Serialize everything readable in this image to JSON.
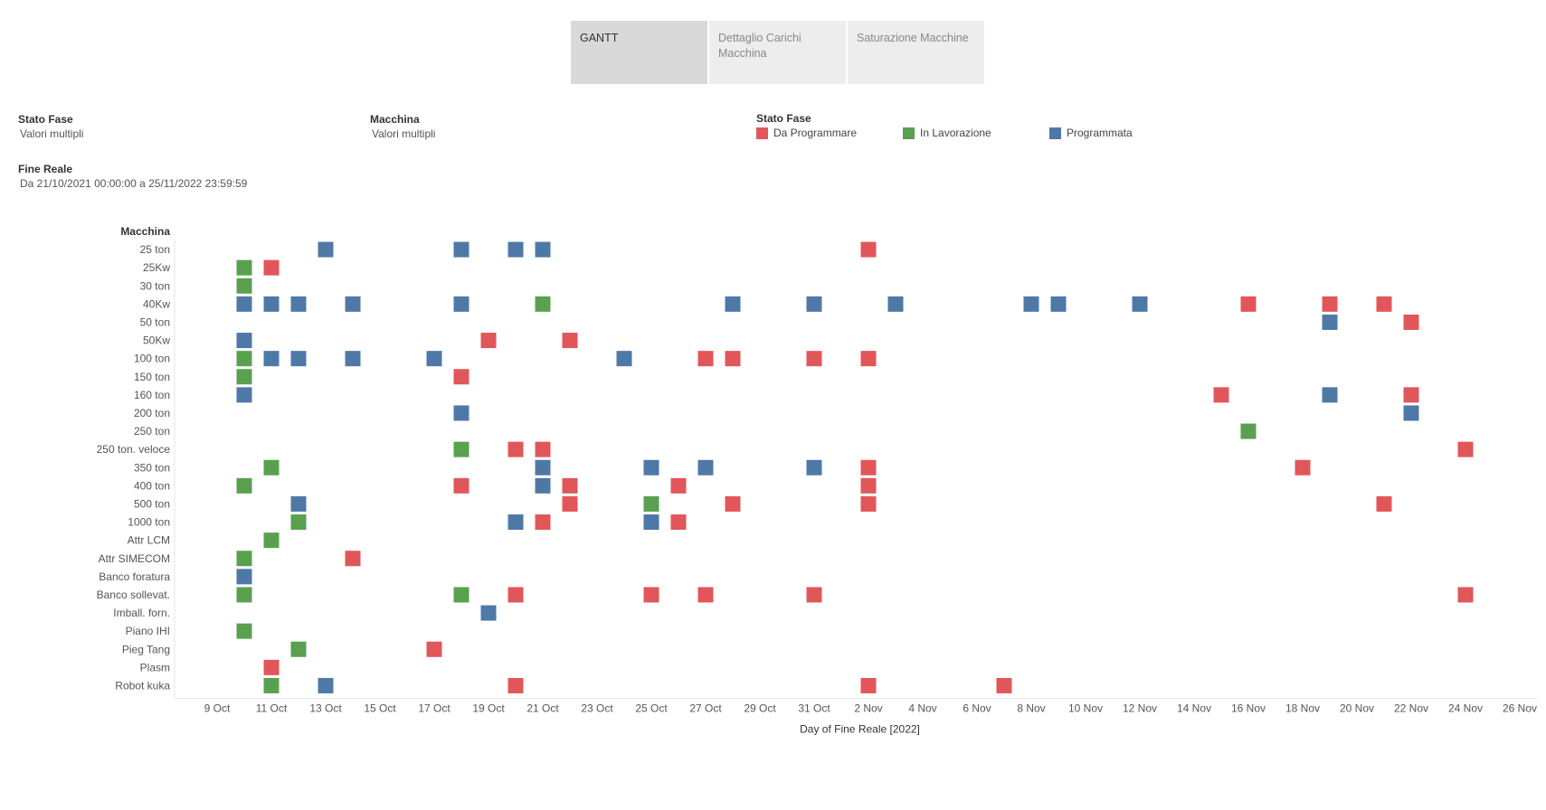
{
  "tabs": [
    {
      "label": "GANTT",
      "active": true
    },
    {
      "label": "Dettaglio Carichi Macchina",
      "active": false
    },
    {
      "label": "Saturazione Macchine",
      "active": false
    }
  ],
  "filters": {
    "stato_fase": {
      "title": "Stato Fase",
      "value": "Valori multipli"
    },
    "macchina": {
      "title": "Macchina",
      "value": "Valori multipli"
    },
    "fine_reale": {
      "title": "Fine Reale",
      "value": "Da 21/10/2021 00:00:00 a 25/11/2022 23:59:59"
    }
  },
  "legend": {
    "title": "Stato Fase",
    "items": [
      {
        "label": "Da Programmare",
        "color": "#e15759"
      },
      {
        "label": "In Lavorazione",
        "color": "#59a14f"
      },
      {
        "label": "Programmata",
        "color": "#4e79a7"
      }
    ]
  },
  "chart_data": {
    "type": "scatter",
    "xlabel": "Day of Fine Reale [2022]",
    "ylabel": "Macchina",
    "x_ticks": [
      "9 Oct",
      "11 Oct",
      "13 Oct",
      "15 Oct",
      "17 Oct",
      "19 Oct",
      "21 Oct",
      "23 Oct",
      "25 Oct",
      "27 Oct",
      "29 Oct",
      "31 Oct",
      "2 Nov",
      "4 Nov",
      "6 Nov",
      "8 Nov",
      "10 Nov",
      "12 Nov",
      "14 Nov",
      "16 Nov",
      "18 Nov",
      "20 Nov",
      "22 Nov",
      "24 Nov",
      "26 Nov"
    ],
    "xlim": [
      "2022-10-08",
      "2022-11-26"
    ],
    "categories": [
      "25 ton",
      "25Kw",
      "30 ton",
      "40Kw",
      "50 ton",
      "50Kw",
      "100 ton",
      "150 ton",
      "160 ton",
      "200 ton",
      "250 ton",
      "250 ton. veloce",
      "350 ton",
      "400 ton",
      "500 ton",
      "1000 ton",
      "Attr LCM",
      "Attr SIMECOM",
      "Banco foratura",
      "Banco sollevat.",
      "Imball. forn.",
      "Piano IHI",
      "Pieg Tang",
      "Plasm",
      "Robot kuka"
    ],
    "series": [
      {
        "name": "Da Programmare",
        "color": "#e15759",
        "points": [
          [
            "2022-11-02",
            "25 ton"
          ],
          [
            "2022-10-11",
            "25Kw"
          ],
          [
            "2022-11-16",
            "40Kw"
          ],
          [
            "2022-11-19",
            "40Kw"
          ],
          [
            "2022-11-21",
            "40Kw"
          ],
          [
            "2022-11-22",
            "50 ton"
          ],
          [
            "2022-10-19",
            "50Kw"
          ],
          [
            "2022-10-22",
            "50Kw"
          ],
          [
            "2022-10-27",
            "100 ton"
          ],
          [
            "2022-10-28",
            "100 ton"
          ],
          [
            "2022-10-31",
            "100 ton"
          ],
          [
            "2022-11-02",
            "100 ton"
          ],
          [
            "2022-10-18",
            "150 ton"
          ],
          [
            "2022-11-15",
            "160 ton"
          ],
          [
            "2022-11-22",
            "160 ton"
          ],
          [
            "2022-10-20",
            "250 ton. veloce"
          ],
          [
            "2022-10-21",
            "250 ton. veloce"
          ],
          [
            "2022-11-24",
            "250 ton. veloce"
          ],
          [
            "2022-11-02",
            "350 ton"
          ],
          [
            "2022-11-18",
            "350 ton"
          ],
          [
            "2022-10-18",
            "400 ton"
          ],
          [
            "2022-10-22",
            "400 ton"
          ],
          [
            "2022-10-26",
            "400 ton"
          ],
          [
            "2022-11-02",
            "400 ton"
          ],
          [
            "2022-10-22",
            "500 ton"
          ],
          [
            "2022-10-28",
            "500 ton"
          ],
          [
            "2022-11-02",
            "500 ton"
          ],
          [
            "2022-11-21",
            "500 ton"
          ],
          [
            "2022-10-21",
            "1000 ton"
          ],
          [
            "2022-10-26",
            "1000 ton"
          ],
          [
            "2022-10-14",
            "Attr SIMECOM"
          ],
          [
            "2022-10-20",
            "Banco sollevat."
          ],
          [
            "2022-10-25",
            "Banco sollevat."
          ],
          [
            "2022-10-27",
            "Banco sollevat."
          ],
          [
            "2022-10-31",
            "Banco sollevat."
          ],
          [
            "2022-11-24",
            "Banco sollevat."
          ],
          [
            "2022-10-17",
            "Pieg Tang"
          ],
          [
            "2022-10-11",
            "Plasm"
          ],
          [
            "2022-10-20",
            "Robot kuka"
          ],
          [
            "2022-11-02",
            "Robot kuka"
          ],
          [
            "2022-11-07",
            "Robot kuka"
          ]
        ]
      },
      {
        "name": "In Lavorazione",
        "color": "#59a14f",
        "points": [
          [
            "2022-10-10",
            "25Kw"
          ],
          [
            "2022-10-10",
            "30 ton"
          ],
          [
            "2022-10-21",
            "40Kw"
          ],
          [
            "2022-10-10",
            "100 ton"
          ],
          [
            "2022-10-10",
            "150 ton"
          ],
          [
            "2022-11-16",
            "250 ton"
          ],
          [
            "2022-10-18",
            "250 ton. veloce"
          ],
          [
            "2022-10-11",
            "350 ton"
          ],
          [
            "2022-10-10",
            "400 ton"
          ],
          [
            "2022-10-25",
            "500 ton"
          ],
          [
            "2022-10-12",
            "1000 ton"
          ],
          [
            "2022-10-11",
            "Attr LCM"
          ],
          [
            "2022-10-10",
            "Attr SIMECOM"
          ],
          [
            "2022-10-10",
            "Banco sollevat."
          ],
          [
            "2022-10-18",
            "Banco sollevat."
          ],
          [
            "2022-10-10",
            "Piano IHI"
          ],
          [
            "2022-10-12",
            "Pieg Tang"
          ],
          [
            "2022-10-11",
            "Robot kuka"
          ]
        ]
      },
      {
        "name": "Programmata",
        "color": "#4e79a7",
        "points": [
          [
            "2022-10-13",
            "25 ton"
          ],
          [
            "2022-10-18",
            "25 ton"
          ],
          [
            "2022-10-20",
            "25 ton"
          ],
          [
            "2022-10-21",
            "25 ton"
          ],
          [
            "2022-10-10",
            "40Kw"
          ],
          [
            "2022-10-11",
            "40Kw"
          ],
          [
            "2022-10-12",
            "40Kw"
          ],
          [
            "2022-10-14",
            "40Kw"
          ],
          [
            "2022-10-18",
            "40Kw"
          ],
          [
            "2022-10-28",
            "40Kw"
          ],
          [
            "2022-10-31",
            "40Kw"
          ],
          [
            "2022-11-03",
            "40Kw"
          ],
          [
            "2022-11-08",
            "40Kw"
          ],
          [
            "2022-11-09",
            "40Kw"
          ],
          [
            "2022-11-12",
            "40Kw"
          ],
          [
            "2022-11-19",
            "50 ton"
          ],
          [
            "2022-10-10",
            "50Kw"
          ],
          [
            "2022-10-11",
            "100 ton"
          ],
          [
            "2022-10-12",
            "100 ton"
          ],
          [
            "2022-10-14",
            "100 ton"
          ],
          [
            "2022-10-17",
            "100 ton"
          ],
          [
            "2022-10-24",
            "100 ton"
          ],
          [
            "2022-10-10",
            "160 ton"
          ],
          [
            "2022-11-19",
            "160 ton"
          ],
          [
            "2022-10-18",
            "200 ton"
          ],
          [
            "2022-11-22",
            "200 ton"
          ],
          [
            "2022-10-21",
            "350 ton"
          ],
          [
            "2022-10-25",
            "350 ton"
          ],
          [
            "2022-10-27",
            "350 ton"
          ],
          [
            "2022-10-31",
            "350 ton"
          ],
          [
            "2022-10-21",
            "400 ton"
          ],
          [
            "2022-10-12",
            "500 ton"
          ],
          [
            "2022-10-20",
            "1000 ton"
          ],
          [
            "2022-10-25",
            "1000 ton"
          ],
          [
            "2022-10-10",
            "Banco foratura"
          ],
          [
            "2022-10-19",
            "Imball. forn."
          ],
          [
            "2022-10-13",
            "Robot kuka"
          ]
        ]
      }
    ]
  }
}
